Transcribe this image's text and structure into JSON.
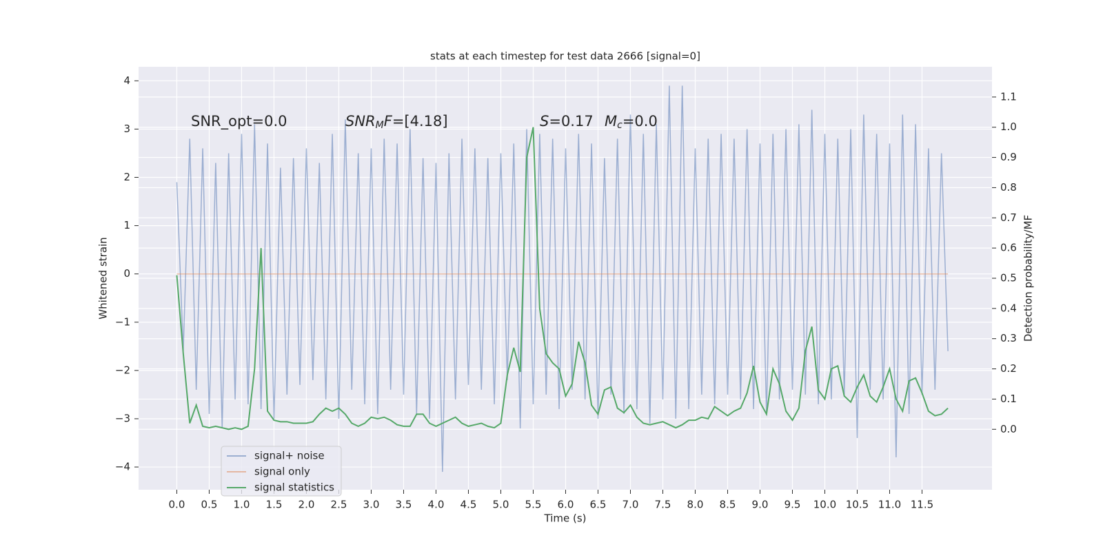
{
  "chart_data": {
    "type": "line",
    "title": "stats at each timestep for test data 2666 [signal=0]",
    "xlabel": "Time (s)",
    "ylabel": "Whitened strain",
    "y2label": "Detection probability/MF",
    "x": [
      0.0,
      0.1,
      0.2,
      0.3,
      0.4,
      0.5,
      0.6,
      0.7,
      0.8,
      0.9,
      1.0,
      1.1,
      1.2,
      1.3,
      1.4,
      1.5,
      1.6,
      1.7,
      1.8,
      1.9,
      2.0,
      2.1,
      2.2,
      2.3,
      2.4,
      2.5,
      2.6,
      2.7,
      2.8,
      2.9,
      3.0,
      3.1,
      3.2,
      3.3,
      3.4,
      3.5,
      3.6,
      3.7,
      3.8,
      3.9,
      4.0,
      4.1,
      4.2,
      4.3,
      4.4,
      4.5,
      4.6,
      4.7,
      4.8,
      4.9,
      5.0,
      5.1,
      5.2,
      5.3,
      5.4,
      5.5,
      5.6,
      5.7,
      5.8,
      5.9,
      6.0,
      6.1,
      6.2,
      6.3,
      6.4,
      6.5,
      6.6,
      6.7,
      6.8,
      6.9,
      7.0,
      7.1,
      7.2,
      7.3,
      7.4,
      7.5,
      7.6,
      7.7,
      7.8,
      7.9,
      8.0,
      8.1,
      8.2,
      8.3,
      8.4,
      8.5,
      8.6,
      8.7,
      8.8,
      8.9,
      9.0,
      9.1,
      9.2,
      9.3,
      9.4,
      9.5,
      9.6,
      9.7,
      9.8,
      9.9,
      10.0,
      10.1,
      10.2,
      10.3,
      10.4,
      10.5,
      10.6,
      10.7,
      10.8,
      10.9,
      11.0,
      11.1,
      11.2,
      11.3,
      11.4,
      11.5,
      11.6,
      11.7,
      11.8,
      11.9
    ],
    "series": [
      {
        "name": "signal+ noise",
        "color": "#4c72b0",
        "opacity": 0.5,
        "values": [
          1.9,
          -1.6,
          2.8,
          -2.4,
          2.6,
          -2.9,
          2.3,
          -3.2,
          2.5,
          -2.6,
          2.9,
          -2.7,
          3.1,
          -2.8,
          2.7,
          -3.0,
          2.2,
          -2.5,
          2.4,
          -2.3,
          2.6,
          -2.2,
          2.3,
          -2.6,
          2.9,
          -3.0,
          3.2,
          -2.4,
          2.5,
          -2.7,
          2.6,
          -2.9,
          2.8,
          -2.4,
          2.7,
          -2.5,
          3.0,
          -2.9,
          2.4,
          -3.0,
          2.3,
          -4.1,
          2.5,
          -2.6,
          2.8,
          -2.3,
          2.6,
          -2.4,
          2.4,
          -2.7,
          2.5,
          -2.2,
          2.7,
          -3.2,
          3.0,
          -2.7,
          2.9,
          -2.5,
          2.8,
          -2.8,
          2.6,
          -2.4,
          2.9,
          -2.6,
          2.7,
          -3.0,
          2.4,
          -2.5,
          2.8,
          -2.9,
          3.3,
          -2.8,
          2.9,
          -3.1,
          3.1,
          -2.6,
          3.9,
          -3.0,
          3.9,
          -2.8,
          2.6,
          -2.5,
          2.8,
          -2.7,
          2.9,
          -2.5,
          2.8,
          -2.6,
          3.0,
          -2.8,
          2.7,
          -2.9,
          2.9,
          -2.6,
          3.0,
          -2.4,
          3.1,
          -2.5,
          3.4,
          -2.7,
          2.9,
          -2.6,
          2.8,
          -2.5,
          3.0,
          -3.4,
          3.3,
          -2.4,
          2.9,
          -2.6,
          2.7,
          -3.8,
          3.3,
          -2.9,
          3.1,
          -2.5,
          2.6,
          -2.4,
          2.5,
          -1.6
        ]
      },
      {
        "name": "signal only",
        "color": "#dd8452",
        "opacity": 0.5,
        "x": [
          0.0,
          11.9
        ],
        "values": [
          0,
          0
        ]
      },
      {
        "name": "signal statistics",
        "color": "#55a868",
        "opacity": 1,
        "axis": "y2",
        "values": [
          0.51,
          0.25,
          0.02,
          0.08,
          0.01,
          0.005,
          0.01,
          0.005,
          0.0,
          0.005,
          0.0,
          0.01,
          0.2,
          0.6,
          0.06,
          0.03,
          0.025,
          0.025,
          0.02,
          0.02,
          0.02,
          0.025,
          0.05,
          0.07,
          0.06,
          0.07,
          0.05,
          0.02,
          0.01,
          0.02,
          0.04,
          0.035,
          0.04,
          0.03,
          0.015,
          0.01,
          0.01,
          0.05,
          0.05,
          0.02,
          0.01,
          0.02,
          0.03,
          0.04,
          0.02,
          0.01,
          0.015,
          0.02,
          0.01,
          0.005,
          0.02,
          0.18,
          0.27,
          0.19,
          0.9,
          1.0,
          0.4,
          0.25,
          0.22,
          0.2,
          0.11,
          0.15,
          0.29,
          0.22,
          0.08,
          0.05,
          0.13,
          0.14,
          0.07,
          0.055,
          0.08,
          0.04,
          0.02,
          0.015,
          0.02,
          0.025,
          0.015,
          0.005,
          0.015,
          0.03,
          0.03,
          0.04,
          0.035,
          0.075,
          0.06,
          0.045,
          0.06,
          0.07,
          0.12,
          0.21,
          0.09,
          0.05,
          0.2,
          0.15,
          0.06,
          0.03,
          0.07,
          0.26,
          0.34,
          0.13,
          0.1,
          0.2,
          0.21,
          0.11,
          0.09,
          0.14,
          0.18,
          0.11,
          0.09,
          0.14,
          0.2,
          0.1,
          0.06,
          0.16,
          0.17,
          0.12,
          0.06,
          0.045,
          0.05,
          0.07
        ]
      }
    ],
    "xlim": [
      -0.59,
      12.58
    ],
    "xticks": [
      {
        "value": 0,
        "label": "0.0"
      },
      {
        "value": 0.5,
        "label": "0.5"
      },
      {
        "value": 1,
        "label": "1.0"
      },
      {
        "value": 1.5,
        "label": "1.5"
      },
      {
        "value": 2,
        "label": "2.0"
      },
      {
        "value": 2.5,
        "label": "2.5"
      },
      {
        "value": 3,
        "label": "3.0"
      },
      {
        "value": 3.5,
        "label": "3.5"
      },
      {
        "value": 4,
        "label": "4.0"
      },
      {
        "value": 4.5,
        "label": "4.5"
      },
      {
        "value": 5,
        "label": "5.0"
      },
      {
        "value": 5.5,
        "label": "5.5"
      },
      {
        "value": 6,
        "label": "6.0"
      },
      {
        "value": 6.5,
        "label": "6.5"
      },
      {
        "value": 7,
        "label": "7.0"
      },
      {
        "value": 7.5,
        "label": "7.5"
      },
      {
        "value": 8,
        "label": "8.0"
      },
      {
        "value": 8.5,
        "label": "8.5"
      },
      {
        "value": 9,
        "label": "9.0"
      },
      {
        "value": 9.5,
        "label": "9.5"
      },
      {
        "value": 10,
        "label": "10.0"
      },
      {
        "value": 10.5,
        "label": "10.5"
      },
      {
        "value": 11,
        "label": "11.0"
      },
      {
        "value": 11.5,
        "label": "11.5"
      }
    ],
    "ylim": [
      -4.47,
      4.29
    ],
    "yticks": [
      {
        "value": -4,
        "label": "−4"
      },
      {
        "value": -3,
        "label": "−3"
      },
      {
        "value": -2,
        "label": "−2"
      },
      {
        "value": -1,
        "label": "−1"
      },
      0,
      1,
      2,
      3,
      4
    ],
    "y2lim": [
      -0.2,
      1.2
    ],
    "y2ticks": [
      {
        "value": 0,
        "label": "0.0"
      },
      {
        "value": 0.1,
        "label": "0.1"
      },
      {
        "value": 0.2,
        "label": "0.2"
      },
      {
        "value": 0.3,
        "label": "0.3"
      },
      {
        "value": 0.4,
        "label": "0.4"
      },
      {
        "value": 0.5,
        "label": "0.5"
      },
      {
        "value": 0.6,
        "label": "0.6"
      },
      {
        "value": 0.7,
        "label": "0.7"
      },
      {
        "value": 0.8,
        "label": "0.8"
      },
      {
        "value": 0.9,
        "label": "0.9"
      },
      {
        "value": 1,
        "label": "1.0"
      },
      {
        "value": 1.1,
        "label": "1.1"
      }
    ],
    "grid": true,
    "legend": "lower left",
    "annotations": [
      {
        "parts": [
          {
            "text": "SNR_opt=0.0"
          }
        ]
      },
      {
        "parts": [
          {
            "text": "SNR",
            "italic": true
          },
          {
            "text": "M",
            "italic": true,
            "sub": true
          },
          {
            "text": "F",
            "italic": true
          },
          {
            "text": "=[4.18]"
          }
        ]
      },
      {
        "parts": [
          {
            "text": "S",
            "italic": true
          },
          {
            "text": "=0.17"
          }
        ]
      },
      {
        "parts": [
          {
            "text": "M",
            "italic": true
          },
          {
            "text": "c",
            "italic": true,
            "sub": true
          },
          {
            "text": "=0.0"
          }
        ]
      }
    ]
  }
}
